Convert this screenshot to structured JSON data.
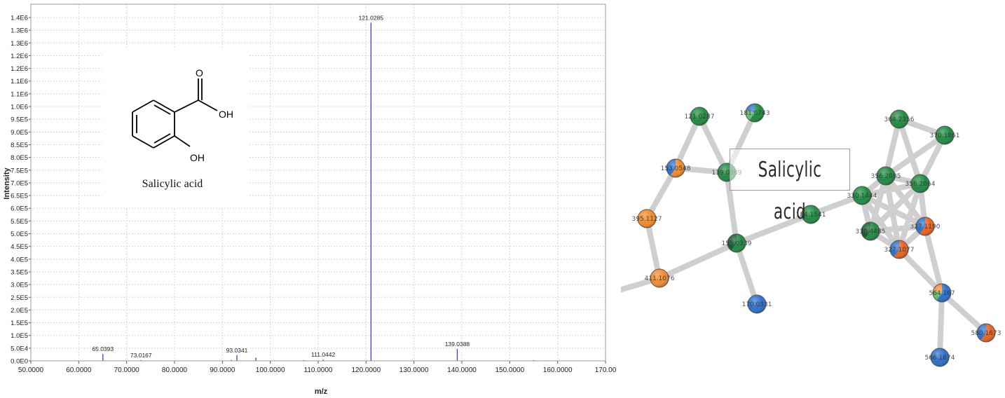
{
  "chart_data": [
    {
      "type": "stem",
      "title": "",
      "xlabel": "m/z",
      "ylabel": "Intensity",
      "xlim": [
        50,
        170
      ],
      "ylim": [
        0,
        1450000
      ],
      "x_ticks": [
        50,
        60,
        70,
        80,
        90,
        100,
        110,
        120,
        130,
        140,
        150,
        160,
        170
      ],
      "x_tick_labels": [
        "50.0000",
        "60.0000",
        "70.0000",
        "80.0000",
        "90.0000",
        "100.0000",
        "110.0000",
        "120.0000",
        "130.0000",
        "140.0000",
        "150.0000",
        "160.0000",
        "170.00"
      ],
      "y_tick_labels": [
        "0.0E0",
        "5.0E4",
        "1.0E5",
        "1.5E5",
        "2.0E5",
        "2.5E5",
        "3.0E5",
        "3.5E5",
        "4.0E5",
        "4.5E5",
        "5.0E5",
        "5.5E5",
        "6.0E5",
        "6.5E5",
        "7.0E5",
        "7.5E5",
        "8.0E5",
        "8.5E5",
        "9.0E5",
        "9.5E5",
        "1.0E6",
        "1.1E6",
        "1.1E6",
        "1.2E6",
        "1.2E6",
        "1.3E6",
        "1.3E6",
        "1.4E6"
      ],
      "grid": true,
      "color": "#3b3bdc",
      "peaks": [
        {
          "mz": 65.0393,
          "intensity": 28000,
          "label": "65.0393"
        },
        {
          "mz": 73.0167,
          "intensity": 3000,
          "label": "73.0167"
        },
        {
          "mz": 91.9,
          "intensity": 4000,
          "label": ""
        },
        {
          "mz": 93.0341,
          "intensity": 23000,
          "label": "93.0341"
        },
        {
          "mz": 97.0,
          "intensity": 13000,
          "label": ""
        },
        {
          "mz": 107.0,
          "intensity": 3000,
          "label": ""
        },
        {
          "mz": 111.0442,
          "intensity": 5000,
          "label": "111.0442"
        },
        {
          "mz": 121.0285,
          "intensity": 1375000,
          "label": "121.0285"
        },
        {
          "mz": 139.0388,
          "intensity": 48000,
          "label": "139.0388"
        },
        {
          "mz": 155.0,
          "intensity": 3000,
          "label": ""
        },
        {
          "mz": 157.5,
          "intensity": 2000,
          "label": ""
        }
      ]
    },
    {
      "type": "network",
      "title": "",
      "nodes": [
        {
          "label": "121.0287",
          "colors": [
            "#1e8a40"
          ]
        },
        {
          "label": "181.0743",
          "colors": [
            "#1e8a40",
            "#5fbf6b",
            "#2a6fc8"
          ]
        },
        {
          "label": "153.0548",
          "colors": [
            "#f08a2b",
            "#2a6fc8"
          ]
        },
        {
          "label": "139.0389",
          "colors": [
            "#1e8a40"
          ]
        },
        {
          "label": "395.1127",
          "colors": [
            "#f08a2b"
          ]
        },
        {
          "label": "411.1076",
          "colors": [
            "#f08a2b"
          ]
        },
        {
          "label": "155.0339",
          "colors": [
            "#1e8a40",
            "#0f5a2c"
          ]
        },
        {
          "label": "170.0331",
          "colors": [
            "#2a6fc8"
          ]
        },
        {
          "label": "184.1541",
          "colors": [
            "#1e8a40"
          ]
        },
        {
          "label": "364.2356",
          "colors": [
            "#1e8a40"
          ]
        },
        {
          "label": "370.1861",
          "colors": [
            "#1e8a40"
          ]
        },
        {
          "label": "356.2085",
          "colors": [
            "#1e8a40"
          ]
        },
        {
          "label": "356.2064",
          "colors": [
            "#1e8a40"
          ]
        },
        {
          "label": "330.1444",
          "colors": [
            "#1e8a40"
          ]
        },
        {
          "label": "330.4485",
          "colors": [
            "#1e8a40",
            "#0f5a2c"
          ]
        },
        {
          "label": "327.1190",
          "colors": [
            "#e8621e",
            "#2a6fc8"
          ]
        },
        {
          "label": "327.1077",
          "colors": [
            "#e8621e",
            "#2a6fc8"
          ]
        },
        {
          "label": "564.167",
          "colors": [
            "#2a6fc8",
            "#5fbf6b",
            "#f08a2b"
          ]
        },
        {
          "label": "580.1673",
          "colors": [
            "#e8621e",
            "#2a6fc8"
          ]
        },
        {
          "label": "566.1674",
          "colors": [
            "#2a6fc8"
          ]
        }
      ]
    }
  ],
  "structure": {
    "name": "Salicylic acid",
    "atoms": [
      "O",
      "OH",
      "OH"
    ]
  },
  "network_label": "Salicylic acid"
}
